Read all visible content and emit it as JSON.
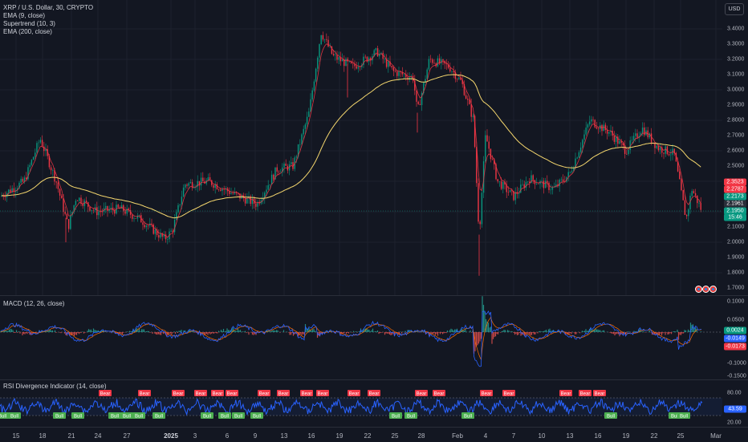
{
  "header": {
    "symbol_line": "XRP / U.S. Dollar, 30, CRYPTO",
    "indicators": [
      "EMA (9, close)",
      "Supertrend (10, 3)",
      "EMA (200, close)"
    ],
    "currency_button": "USD"
  },
  "price_axis": {
    "ticks": [
      "3.4000",
      "3.3000",
      "3.2000",
      "3.1000",
      "3.0000",
      "2.9000",
      "2.8000",
      "2.7000",
      "2.6000",
      "2.5000",
      "2.2000",
      "2.1000",
      "2.0000",
      "1.9000",
      "1.8000",
      "1.7000"
    ],
    "tags": [
      {
        "text": "2.3523",
        "color": "#f23645"
      },
      {
        "text": "2.2787",
        "color": "#f23645"
      },
      {
        "text": "2.2173",
        "color": "#089981"
      },
      {
        "text": "2.1961",
        "color": "#2a2e39"
      },
      {
        "text": "2.1950",
        "color": "#089981"
      },
      {
        "text": "15:46",
        "color": "#089981"
      }
    ]
  },
  "macd": {
    "legend": "MACD (12, 26, close)",
    "ticks": [
      "0.1000",
      "0.0500",
      "0.0000",
      "-0.0500",
      "-0.1000",
      "-0.1500"
    ],
    "tags": [
      {
        "text": "0.0024",
        "color": "#089981"
      },
      {
        "text": "-0.0149",
        "color": "#2962ff"
      },
      {
        "text": "-0.0173",
        "color": "#f23645"
      }
    ]
  },
  "rsi": {
    "legend": "RSI Divergence Indicator (14, close)",
    "ticks": [
      "80.00",
      "20.00"
    ],
    "tag": {
      "text": "43.59",
      "color": "#2962ff"
    },
    "bear_label": "Bear",
    "bull_label": "Bull"
  },
  "time_axis": [
    "15",
    "18",
    "21",
    "24",
    "27",
    "2025",
    "3",
    "6",
    "9",
    "13",
    "16",
    "19",
    "22",
    "25",
    "28",
    "Feb",
    "4",
    "7",
    "10",
    "13",
    "16",
    "19",
    "22",
    "25",
    "Mar"
  ],
  "colors": {
    "up": "#089981",
    "down": "#f23645",
    "ema9": "#f23645",
    "ema200": "#f5d76e",
    "macd": "#2962ff",
    "signal": "#ff6d00",
    "rsi": "#2962ff"
  },
  "chart_data": {
    "type": "line",
    "title": "XRP / U.S. Dollar, 30, CRYPTO",
    "x": [
      "15",
      "18",
      "21",
      "24",
      "27",
      "2025",
      "3",
      "6",
      "9",
      "13",
      "16",
      "19",
      "22",
      "25",
      "28",
      "Feb",
      "4",
      "7",
      "10",
      "13",
      "16",
      "19",
      "22",
      "25"
    ],
    "series": [
      {
        "name": "XRP / U.S. Dollar",
        "values": [
          2.35,
          2.65,
          2.25,
          2.18,
          2.05,
          2.0,
          2.35,
          2.38,
          2.25,
          2.4,
          3.3,
          3.2,
          3.15,
          3.05,
          3.15,
          2.8,
          2.4,
          2.3,
          2.4,
          2.78,
          2.62,
          2.7,
          2.5,
          2.2
        ]
      },
      {
        "name": "EMA (200, close)",
        "values": [
          2.28,
          2.45,
          2.3,
          2.22,
          2.15,
          2.1,
          2.22,
          2.3,
          2.3,
          2.36,
          2.8,
          3.1,
          3.12,
          3.08,
          3.12,
          2.95,
          2.6,
          2.42,
          2.38,
          2.62,
          2.64,
          2.66,
          2.55,
          2.3
        ]
      }
    ],
    "ylim": [
      1.7,
      3.45
    ]
  }
}
